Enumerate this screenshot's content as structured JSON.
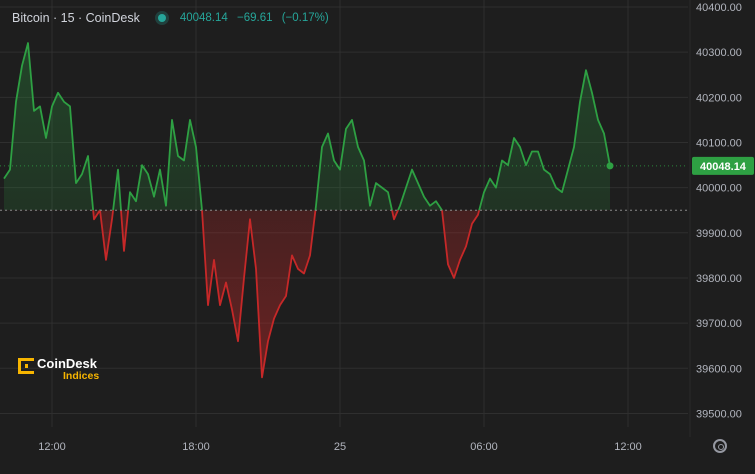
{
  "header": {
    "symbol": "Bitcoin · 15 · CoinDesk",
    "last": "40048.14",
    "change": "−69.61",
    "change_pct": "(−0.17%)"
  },
  "logo": {
    "name": "CoinDesk",
    "sub": "Indices"
  },
  "last_price_label": "40048.14",
  "colors": {
    "background": "#1e1e1e",
    "up": "#2ea043",
    "down": "#c62828",
    "accent": "#26a69a",
    "grid": "#2f2f2f",
    "logo": "#f7b500"
  },
  "icons": {
    "live_indicator": "dot-icon",
    "settings": "gear-icon"
  },
  "chart_data": {
    "type": "area",
    "baseline": 39950,
    "ylim": [
      39470,
      40400
    ],
    "xlim": [
      0,
      114
    ],
    "grid": true,
    "y_ticks": [
      "40400.00",
      "40300.00",
      "40200.00",
      "40100.00",
      "40000.00",
      "39900.00",
      "39800.00",
      "39700.00",
      "39600.00",
      "39500.00"
    ],
    "y_tick_values": [
      40400,
      40300,
      40200,
      40100,
      40000,
      39900,
      39800,
      39700,
      39600,
      39500
    ],
    "x_ticks": [
      "12:00",
      "18:00",
      "25",
      "06:00",
      "12:00"
    ],
    "x_tick_positions": [
      8,
      32,
      56,
      80,
      104
    ],
    "last_value": 40048.14,
    "values": [
      40020,
      40040,
      40190,
      40270,
      40320,
      40170,
      40180,
      40110,
      40180,
      40210,
      40190,
      40180,
      40010,
      40030,
      40070,
      39930,
      39950,
      39840,
      39930,
      40040,
      39860,
      39990,
      39970,
      40050,
      40030,
      39980,
      40040,
      39960,
      40150,
      40070,
      40060,
      40150,
      40090,
      39950,
      39740,
      39840,
      39740,
      39790,
      39730,
      39660,
      39800,
      39930,
      39820,
      39580,
      39660,
      39710,
      39740,
      39760,
      39850,
      39820,
      39810,
      39850,
      39960,
      40090,
      40120,
      40060,
      40040,
      40130,
      40150,
      40090,
      40060,
      39960,
      40010,
      40000,
      39990,
      39930,
      39960,
      40000,
      40040,
      40010,
      39980,
      39960,
      39970,
      39950,
      39830,
      39800,
      39840,
      39870,
      39920,
      39940,
      39990,
      40020,
      40000,
      40060,
      40050,
      40110,
      40090,
      40050,
      40080,
      40080,
      40040,
      40030,
      40000,
      39990,
      40040,
      40090,
      40190,
      40260,
      40210,
      40150,
      40120,
      40048.14
    ]
  }
}
